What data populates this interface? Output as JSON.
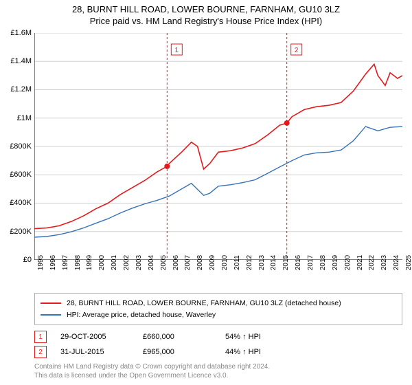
{
  "title": {
    "line1": "28, BURNT HILL ROAD, LOWER BOURNE, FARNHAM, GU10 3LZ",
    "line2": "Price paid vs. HM Land Registry's House Price Index (HPI)"
  },
  "chart": {
    "type": "line",
    "background_color": "#ffffff",
    "grid_color": "#d0d0d0",
    "axis_color": "#000000",
    "ylim": [
      0,
      1600000
    ],
    "ytick_step": 200000,
    "ytick_labels": [
      "£0",
      "£200K",
      "£400K",
      "£600K",
      "£800K",
      "£1M",
      "£1.2M",
      "£1.4M",
      "£1.6M"
    ],
    "x_years": [
      1995,
      1996,
      1997,
      1998,
      1999,
      2000,
      2001,
      2002,
      2003,
      2004,
      2005,
      2006,
      2007,
      2008,
      2009,
      2010,
      2011,
      2012,
      2013,
      2014,
      2015,
      2016,
      2017,
      2018,
      2019,
      2020,
      2021,
      2022,
      2023,
      2024,
      2025
    ],
    "series": [
      {
        "name": "28, BURNT HILL ROAD, LOWER BOURNE, FARNHAM, GU10 3LZ (detached house)",
        "color": "#e41a1c",
        "line_width": 1.6,
        "data": [
          [
            1995,
            220000
          ],
          [
            1996,
            225000
          ],
          [
            1997,
            240000
          ],
          [
            1998,
            270000
          ],
          [
            1999,
            310000
          ],
          [
            2000,
            360000
          ],
          [
            2001,
            400000
          ],
          [
            2002,
            460000
          ],
          [
            2003,
            510000
          ],
          [
            2004,
            560000
          ],
          [
            2005,
            620000
          ],
          [
            2005.82,
            660000
          ],
          [
            2006,
            680000
          ],
          [
            2007,
            760000
          ],
          [
            2007.8,
            830000
          ],
          [
            2008.3,
            800000
          ],
          [
            2008.8,
            640000
          ],
          [
            2009.3,
            680000
          ],
          [
            2010,
            760000
          ],
          [
            2011,
            770000
          ],
          [
            2012,
            790000
          ],
          [
            2013,
            820000
          ],
          [
            2014,
            880000
          ],
          [
            2015,
            950000
          ],
          [
            2015.58,
            965000
          ],
          [
            2016,
            1010000
          ],
          [
            2017,
            1060000
          ],
          [
            2018,
            1080000
          ],
          [
            2019,
            1090000
          ],
          [
            2020,
            1110000
          ],
          [
            2021,
            1190000
          ],
          [
            2022,
            1310000
          ],
          [
            2022.7,
            1380000
          ],
          [
            2023,
            1300000
          ],
          [
            2023.6,
            1230000
          ],
          [
            2024,
            1320000
          ],
          [
            2024.6,
            1280000
          ],
          [
            2025,
            1300000
          ]
        ]
      },
      {
        "name": "HPI: Average price, detached house, Waverley",
        "color": "#3773b8",
        "line_width": 1.4,
        "data": [
          [
            1995,
            160000
          ],
          [
            1996,
            165000
          ],
          [
            1997,
            178000
          ],
          [
            1998,
            198000
          ],
          [
            1999,
            225000
          ],
          [
            2000,
            258000
          ],
          [
            2001,
            290000
          ],
          [
            2002,
            330000
          ],
          [
            2003,
            365000
          ],
          [
            2004,
            395000
          ],
          [
            2005,
            420000
          ],
          [
            2006,
            450000
          ],
          [
            2007,
            500000
          ],
          [
            2007.8,
            540000
          ],
          [
            2008.8,
            455000
          ],
          [
            2009.3,
            470000
          ],
          [
            2010,
            520000
          ],
          [
            2011,
            530000
          ],
          [
            2012,
            545000
          ],
          [
            2013,
            565000
          ],
          [
            2014,
            610000
          ],
          [
            2015,
            655000
          ],
          [
            2016,
            700000
          ],
          [
            2017,
            740000
          ],
          [
            2018,
            755000
          ],
          [
            2019,
            760000
          ],
          [
            2020,
            775000
          ],
          [
            2021,
            840000
          ],
          [
            2022,
            940000
          ],
          [
            2023,
            910000
          ],
          [
            2024,
            935000
          ],
          [
            2025,
            940000
          ]
        ]
      }
    ],
    "sales_markers": [
      {
        "n": "1",
        "year": 2005.82,
        "price": 660000,
        "color": "#e41a1c"
      },
      {
        "n": "2",
        "year": 2015.58,
        "price": 965000,
        "color": "#e41a1c"
      }
    ]
  },
  "legend": [
    {
      "color": "#e41a1c",
      "label": "28, BURNT HILL ROAD, LOWER BOURNE, FARNHAM, GU10 3LZ (detached house)"
    },
    {
      "color": "#3773b8",
      "label": "HPI: Average price, detached house, Waverley"
    }
  ],
  "sales": [
    {
      "n": "1",
      "date": "29-OCT-2005",
      "price": "£660,000",
      "delta": "54% ↑ HPI",
      "box_color": "#e41a1c"
    },
    {
      "n": "2",
      "date": "31-JUL-2015",
      "price": "£965,000",
      "delta": "44% ↑ HPI",
      "box_color": "#e41a1c"
    }
  ],
  "footer": {
    "line1": "Contains HM Land Registry data © Crown copyright and database right 2024.",
    "line2": "This data is licensed under the Open Government Licence v3.0."
  }
}
